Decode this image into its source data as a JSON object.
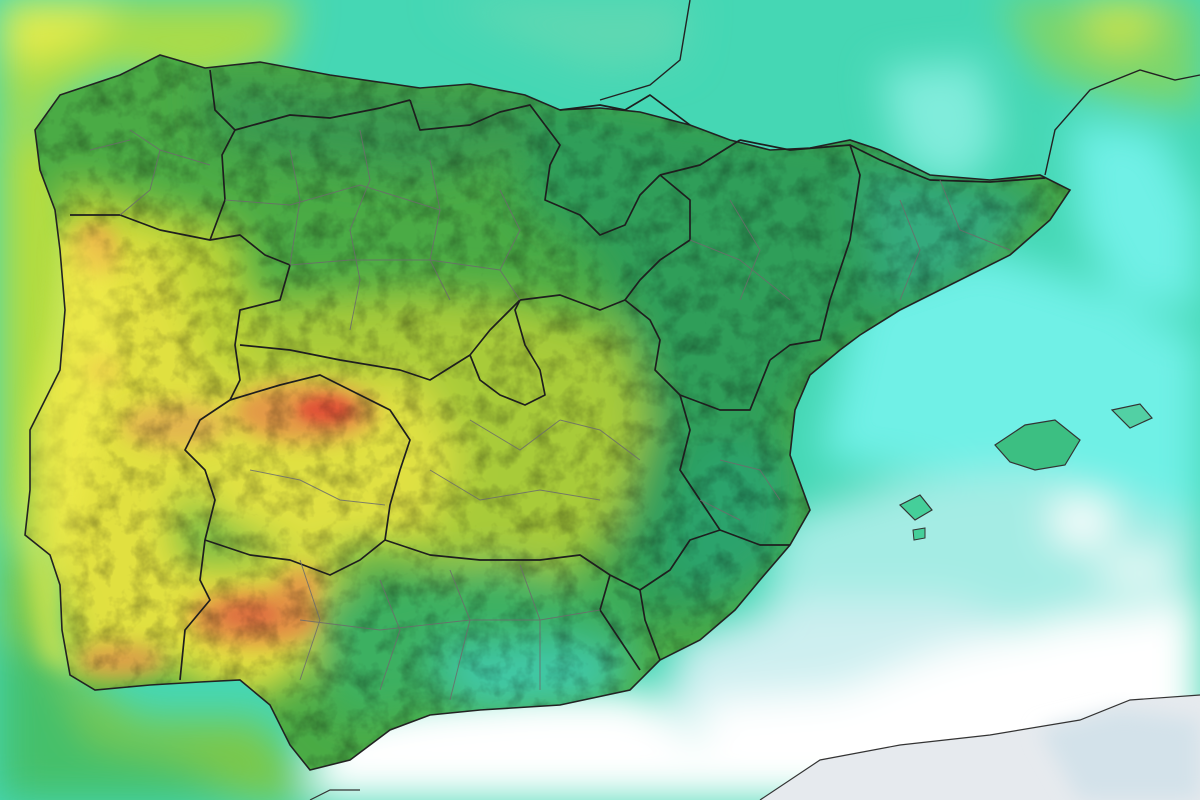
{
  "map": {
    "colors": {
      "sea_white": "#ffffff",
      "sea_grey": "#e6eaee",
      "sea_pale_cyan": "#cdeff0",
      "sea_cyan": "#6ff0e6",
      "sea_teal": "#45d7b4",
      "sea_green": "#33c98c",
      "land_dark_green": "#2fa55c",
      "land_green": "#58b848",
      "land_yellow_green": "#b7dc3c",
      "land_yellow": "#f2f046",
      "land_orange": "#f2a24c",
      "land_red": "#ee5a3a",
      "border_line": "#222222",
      "province_line": "#7a7a7a"
    },
    "layers": [
      "precipitation-shading",
      "relief-hillshade",
      "coastline",
      "region-borders",
      "province-borders"
    ]
  }
}
